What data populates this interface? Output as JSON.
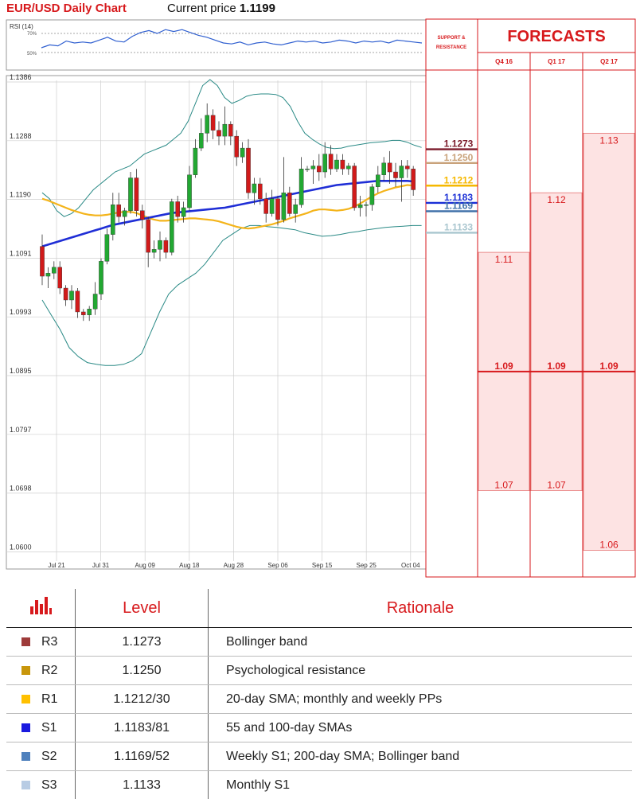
{
  "header": {
    "title": "EUR/USD Daily Chart",
    "price_label": "Current price",
    "price_value": "1.1199"
  },
  "rsi": {
    "label": "RSI (14)",
    "level_high": "70%",
    "level_low": "50%",
    "values": [
      0.55,
      0.58,
      0.57,
      0.62,
      0.6,
      0.61,
      0.6,
      0.63,
      0.66,
      0.62,
      0.61,
      0.67,
      0.71,
      0.73,
      0.7,
      0.74,
      0.72,
      0.74,
      0.71,
      0.68,
      0.66,
      0.63,
      0.6,
      0.59,
      0.61,
      0.58,
      0.6,
      0.61,
      0.59,
      0.58,
      0.6,
      0.62,
      0.61,
      0.62,
      0.6,
      0.61,
      0.63,
      0.62,
      0.6,
      0.62,
      0.61,
      0.62,
      0.6,
      0.63,
      0.62,
      0.61,
      0.6
    ]
  },
  "chart_data": {
    "type": "candlestick",
    "ylim": [
      1.06,
      1.1386
    ],
    "yticks": [
      "1.1386",
      "1.1288",
      "1.1190",
      "1.1091",
      "1.0993",
      "1.0895",
      "1.0797",
      "1.0698",
      "1.0600"
    ],
    "xticks": [
      "Jul 21",
      "Jul 31",
      "Aug 09",
      "Aug 18",
      "Aug 28",
      "Sep 06",
      "Sep 15",
      "Sep 25",
      "Oct 04"
    ],
    "candles": [
      [
        1.111,
        1.106,
        1.113,
        1.1045
      ],
      [
        1.106,
        1.1065,
        1.1075,
        1.104
      ],
      [
        1.1065,
        1.1075,
        1.1085,
        1.1055
      ],
      [
        1.1075,
        1.104,
        1.1085,
        1.103
      ],
      [
        1.104,
        1.102,
        1.1045,
        1.101
      ],
      [
        1.102,
        1.1035,
        1.1045,
        1.1005
      ],
      [
        1.1035,
        1.1,
        1.104,
        1.099
      ],
      [
        1.1,
        1.0995,
        1.1005,
        1.0985
      ],
      [
        1.0995,
        1.1005,
        1.101,
        1.0985
      ],
      [
        1.1005,
        1.103,
        1.105,
        1.0995
      ],
      [
        1.103,
        1.1085,
        1.109,
        1.102
      ],
      [
        1.1085,
        1.113,
        1.114,
        1.108
      ],
      [
        1.113,
        1.118,
        1.12,
        1.112
      ],
      [
        1.118,
        1.116,
        1.12,
        1.115
      ],
      [
        1.116,
        1.117,
        1.1175,
        1.1145
      ],
      [
        1.117,
        1.1225,
        1.1235,
        1.1165
      ],
      [
        1.1225,
        1.117,
        1.124,
        1.116
      ],
      [
        1.117,
        1.1155,
        1.118,
        1.114
      ],
      [
        1.1155,
        1.11,
        1.116,
        1.1075
      ],
      [
        1.11,
        1.1105,
        1.112,
        1.109
      ],
      [
        1.1105,
        1.112,
        1.1135,
        1.1085
      ],
      [
        1.112,
        1.11,
        1.1125,
        1.109
      ],
      [
        1.11,
        1.1185,
        1.119,
        1.1095
      ],
      [
        1.1185,
        1.116,
        1.1195,
        1.115
      ],
      [
        1.116,
        1.1175,
        1.1185,
        1.115
      ],
      [
        1.1175,
        1.123,
        1.1245,
        1.117
      ],
      [
        1.123,
        1.1275,
        1.129,
        1.1225
      ],
      [
        1.1275,
        1.13,
        1.1325,
        1.127
      ],
      [
        1.13,
        1.133,
        1.135,
        1.1285
      ],
      [
        1.133,
        1.1305,
        1.134,
        1.129
      ],
      [
        1.1305,
        1.1295,
        1.132,
        1.128
      ],
      [
        1.1295,
        1.1315,
        1.1345,
        1.128
      ],
      [
        1.1315,
        1.1295,
        1.132,
        1.128
      ],
      [
        1.1295,
        1.126,
        1.1305,
        1.1245
      ],
      [
        1.126,
        1.1275,
        1.1285,
        1.125
      ],
      [
        1.1275,
        1.12,
        1.129,
        1.119
      ],
      [
        1.12,
        1.1215,
        1.1225,
        1.118
      ],
      [
        1.1215,
        1.119,
        1.1225,
        1.118
      ],
      [
        1.119,
        1.1165,
        1.12,
        1.115
      ],
      [
        1.1165,
        1.119,
        1.1205,
        1.116
      ],
      [
        1.119,
        1.1155,
        1.1195,
        1.1145
      ],
      [
        1.1155,
        1.12,
        1.126,
        1.115
      ],
      [
        1.12,
        1.1165,
        1.121,
        1.116
      ],
      [
        1.1165,
        1.118,
        1.119,
        1.115
      ],
      [
        1.118,
        1.124,
        1.126,
        1.1175
      ],
      [
        1.124,
        1.124,
        1.1245,
        1.1235
      ],
      [
        1.124,
        1.1245,
        1.1255,
        1.1215
      ],
      [
        1.1245,
        1.1235,
        1.1265,
        1.122
      ],
      [
        1.1235,
        1.1265,
        1.1285,
        1.1225
      ],
      [
        1.1265,
        1.124,
        1.128,
        1.123
      ],
      [
        1.124,
        1.1255,
        1.1265,
        1.1235
      ],
      [
        1.1255,
        1.124,
        1.1265,
        1.123
      ],
      [
        1.124,
        1.1245,
        1.125,
        1.123
      ],
      [
        1.1245,
        1.1175,
        1.125,
        1.117
      ],
      [
        1.1175,
        1.118,
        1.1195,
        1.116
      ],
      [
        1.118,
        1.118,
        1.1185,
        1.116
      ],
      [
        1.118,
        1.121,
        1.1215,
        1.117
      ],
      [
        1.121,
        1.123,
        1.1245,
        1.12
      ],
      [
        1.123,
        1.125,
        1.126,
        1.122
      ],
      [
        1.125,
        1.1235,
        1.127,
        1.1215
      ],
      [
        1.1235,
        1.1225,
        1.125,
        1.121
      ],
      [
        1.1225,
        1.1245,
        1.1255,
        1.1185
      ],
      [
        1.1245,
        1.124,
        1.1255,
        1.1225
      ],
      [
        1.124,
        1.1205,
        1.1245,
        1.1195
      ]
    ],
    "ma_blue": [
      1.111,
      1.1113,
      1.1116,
      1.1119,
      1.1122,
      1.1125,
      1.1128,
      1.1131,
      1.1134,
      1.1137,
      1.114,
      1.1143,
      1.1146,
      1.1148,
      1.115,
      1.1152,
      1.1154,
      1.1156,
      1.1158,
      1.116,
      1.1162,
      1.1164,
      1.1166,
      1.1167,
      1.1168,
      1.1169,
      1.117,
      1.1171,
      1.1172,
      1.1173,
      1.1174,
      1.1175,
      1.1177,
      1.1179,
      1.1181,
      1.1183,
      1.1185,
      1.1187,
      1.1189,
      1.1191,
      1.1193,
      1.1195,
      1.1197,
      1.1199,
      1.1201,
      1.1203,
      1.1205,
      1.1207,
      1.1209,
      1.1211,
      1.1213,
      1.1214,
      1.1215,
      1.1216,
      1.1217,
      1.1218,
      1.1219,
      1.122,
      1.122,
      1.122,
      1.122,
      1.122,
      1.122,
      1.1219
    ],
    "ma_yellow": [
      1.119,
      1.1187,
      1.1183,
      1.1179,
      1.1175,
      1.1171,
      1.1168,
      1.1165,
      1.1163,
      1.1162,
      1.1162,
      1.1163,
      1.1165,
      1.1167,
      1.1168,
      1.1168,
      1.1166,
      1.1162,
      1.1158,
      1.1155,
      1.1153,
      1.1153,
      1.1154,
      1.1155,
      1.1156,
      1.1157,
      1.1157,
      1.1156,
      1.1155,
      1.1154,
      1.1152,
      1.1149,
      1.1146,
      1.1143,
      1.1141,
      1.114,
      1.1141,
      1.1143,
      1.1145,
      1.1147,
      1.115,
      1.1153,
      1.1157,
      1.116,
      1.1163,
      1.1166,
      1.117,
      1.1172,
      1.1172,
      1.1171,
      1.117,
      1.1171,
      1.1173,
      1.1177,
      1.1182,
      1.1188,
      1.1194,
      1.1199,
      1.1203,
      1.1206,
      1.1209,
      1.1211,
      1.1213,
      1.1212
    ],
    "bb_upper": [
      1.12,
      1.119,
      1.117,
      1.116,
      1.1165,
      1.1175,
      1.119,
      1.1205,
      1.1215,
      1.1225,
      1.1235,
      1.124,
      1.1245,
      1.1255,
      1.1265,
      1.127,
      1.1275,
      1.128,
      1.129,
      1.13,
      1.132,
      1.135,
      1.138,
      1.139,
      1.138,
      1.136,
      1.135,
      1.1355,
      1.1362,
      1.1365,
      1.1366,
      1.1366,
      1.1365,
      1.136,
      1.1345,
      1.132,
      1.13,
      1.129,
      1.1282,
      1.1276,
      1.1274,
      1.1275,
      1.1278,
      1.128,
      1.1282,
      1.1284,
      1.1285,
      1.1286,
      1.1288,
      1.1288,
      1.1285,
      1.128,
      1.1276
    ],
    "bb_lower": [
      1.102,
      1.0995,
      1.097,
      1.094,
      1.0925,
      1.0915,
      1.0912,
      1.091,
      1.091,
      1.0912,
      1.0918,
      1.093,
      1.0965,
      1.1,
      1.103,
      1.1045,
      1.1055,
      1.1065,
      1.108,
      1.11,
      1.112,
      1.113,
      1.114,
      1.1145,
      1.1145,
      1.1143,
      1.1142,
      1.114,
      1.1138,
      1.1133,
      1.113,
      1.1127,
      1.1128,
      1.113,
      1.1133,
      1.1135,
      1.1138,
      1.114,
      1.1142,
      1.1143,
      1.1144,
      1.1145,
      1.1145
    ],
    "sr_levels": [
      {
        "label": "1.1273",
        "value": 1.1273,
        "color": "#7b1b2a"
      },
      {
        "label": "1.1250",
        "value": 1.125,
        "color": "#c9a27a"
      },
      {
        "label": "1.1212",
        "value": 1.1212,
        "color": "#f6b800"
      },
      {
        "label": "1.1183",
        "value": 1.1183,
        "color": "#1a2fd6"
      },
      {
        "label": "1.1169",
        "value": 1.1169,
        "color": "#3d6fa8"
      },
      {
        "label": "1.1133",
        "value": 1.1133,
        "color": "#a9c6cf"
      }
    ]
  },
  "forecast_panel": {
    "sr_heading_line1": "SUPPORT &",
    "sr_heading_line2": "RESISTANCE",
    "title": "FORECASTS",
    "columns": [
      {
        "label": "Q4 16",
        "top": 1.11,
        "top_label": "1.11",
        "mid_label": "1.09",
        "bottom": 1.07,
        "bottom_label": "1.07"
      },
      {
        "label": "Q1 17",
        "top": 1.12,
        "top_label": "1.12",
        "mid_label": "1.09",
        "bottom": 1.07,
        "bottom_label": "1.07"
      },
      {
        "label": "Q2 17",
        "top": 1.13,
        "top_label": "1.13",
        "mid_label": "1.09",
        "bottom": 1.06,
        "bottom_label": "1.06"
      }
    ],
    "mid_value": 1.09
  },
  "table": {
    "header_level": "Level",
    "header_rationale": "Rationale",
    "rows": [
      {
        "name": "R3",
        "level": "1.1273",
        "rationale": "Bollinger band",
        "color": "#9e3b3a"
      },
      {
        "name": "R2",
        "level": "1.1250",
        "rationale": "Psychological resistance",
        "color": "#c8960c"
      },
      {
        "name": "R1",
        "level": "1.1212/30",
        "rationale": "20-day SMA; monthly and weekly PPs",
        "color": "#ffc000"
      },
      {
        "name": "S1",
        "level": "1.1183/81",
        "rationale": "55 and 100-day SMAs",
        "color": "#1a1adf"
      },
      {
        "name": "S2",
        "level": "1.1169/52",
        "rationale": "Weekly S1; 200-day SMA; Bollinger band",
        "color": "#4f81bd"
      },
      {
        "name": "S3",
        "level": "1.1133",
        "rationale": "Monthly S1",
        "color": "#b8cce4"
      }
    ]
  }
}
